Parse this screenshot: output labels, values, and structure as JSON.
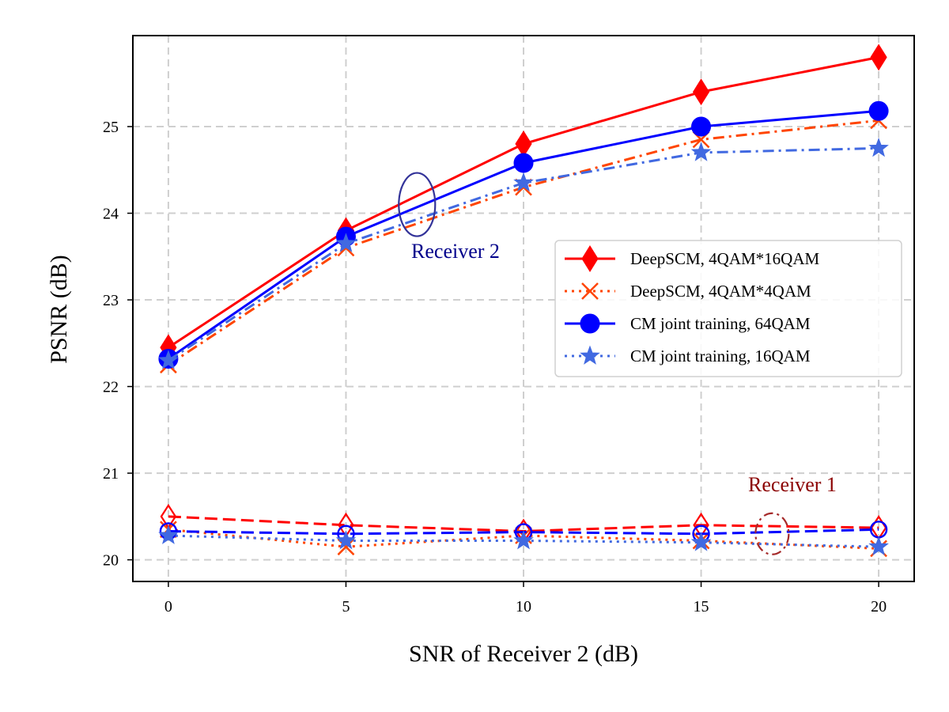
{
  "chart_data": {
    "type": "line",
    "xlabel": "SNR of Receiver 2 (dB)",
    "ylabel": "PSNR (dB)",
    "xlim": [
      -1,
      21
    ],
    "ylim": [
      19.75,
      26.05
    ],
    "xticks": [
      0,
      5,
      10,
      15,
      20
    ],
    "yticks": [
      20,
      21,
      22,
      23,
      24,
      25
    ],
    "grid": true,
    "legend_position": "center-right",
    "x": [
      0,
      5,
      10,
      15,
      20
    ],
    "series": [
      {
        "name": "DeepSCM, 4QAM*16QAM",
        "receiver": "Receiver 2",
        "color": "#ff0000",
        "marker": "diamond",
        "dash": "solid",
        "values": [
          22.45,
          23.8,
          24.8,
          25.4,
          25.8
        ]
      },
      {
        "name": "DeepSCM, 4QAM*4QAM",
        "receiver": "Receiver 2",
        "color": "#ff4500",
        "marker": "x",
        "dash": "dashdot",
        "values": [
          22.25,
          23.6,
          24.3,
          24.85,
          25.07
        ]
      },
      {
        "name": "CM joint training, 64QAM",
        "receiver": "Receiver 2",
        "color": "#0000ff",
        "marker": "circle",
        "dash": "solid",
        "values": [
          22.32,
          23.73,
          24.58,
          25.0,
          25.18
        ]
      },
      {
        "name": "CM joint training, 16QAM",
        "receiver": "Receiver 2",
        "color": "#4169e1",
        "marker": "star",
        "dash": "dashdot",
        "values": [
          22.3,
          23.65,
          24.35,
          24.7,
          24.75
        ]
      },
      {
        "name": "DeepSCM, 4QAM*16QAM",
        "receiver": "Receiver 1",
        "color": "#ff0000",
        "marker": "diamond-open",
        "dash": "dashed",
        "values": [
          20.5,
          20.4,
          20.33,
          20.4,
          20.37
        ]
      },
      {
        "name": "DeepSCM, 4QAM*4QAM",
        "receiver": "Receiver 1",
        "color": "#ff4500",
        "marker": "x",
        "dash": "dotted",
        "values": [
          20.35,
          20.15,
          20.28,
          20.22,
          20.13
        ]
      },
      {
        "name": "CM joint training, 64QAM",
        "receiver": "Receiver 1",
        "color": "#0000ff",
        "marker": "circle-open",
        "dash": "dashed",
        "values": [
          20.33,
          20.3,
          20.32,
          20.3,
          20.35
        ]
      },
      {
        "name": "CM joint training, 16QAM",
        "receiver": "Receiver 1",
        "color": "#4169e1",
        "marker": "star",
        "dash": "dotted",
        "values": [
          20.28,
          20.22,
          20.22,
          20.2,
          20.15
        ]
      }
    ],
    "legend": [
      {
        "label": "DeepSCM, 4QAM*16QAM",
        "color": "#ff0000",
        "marker": "diamond",
        "dash": "solid"
      },
      {
        "label": "DeepSCM, 4QAM*4QAM",
        "color": "#ff4500",
        "marker": "x",
        "dash": "dotted"
      },
      {
        "label": "CM joint training, 64QAM",
        "color": "#0000ff",
        "marker": "circle",
        "dash": "solid"
      },
      {
        "label": "CM joint training, 16QAM",
        "color": "#4169e1",
        "marker": "star",
        "dash": "dotted"
      }
    ],
    "annotations": [
      {
        "text": "Receiver 2",
        "color": "#00008b",
        "ellipse_center": [
          7,
          24.1
        ],
        "ellipse_color": "#333399",
        "ellipse_dash": "solid"
      },
      {
        "text": "Receiver 1",
        "color": "#8b0000",
        "ellipse_center": [
          17,
          20.3
        ],
        "ellipse_color": "#a52a2a",
        "ellipse_dash": "dashdot"
      }
    ]
  }
}
